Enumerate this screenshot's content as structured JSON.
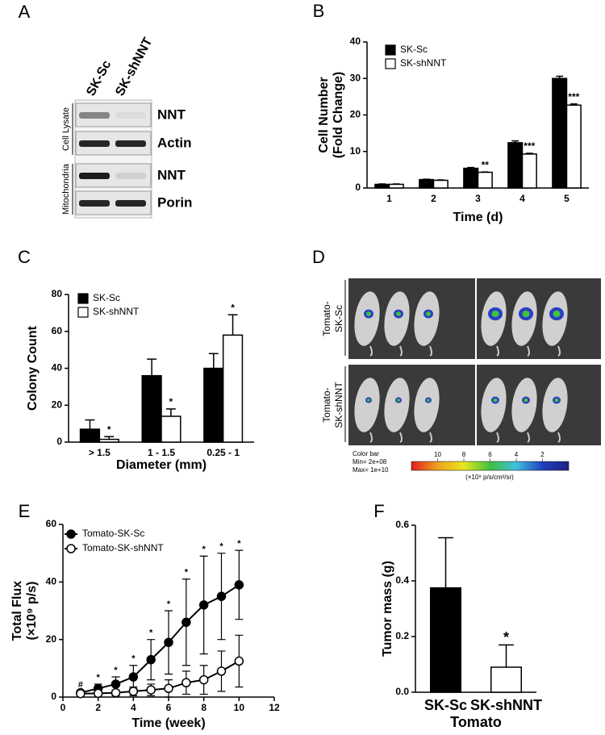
{
  "blot": {
    "panel": "A",
    "lanes": [
      "SK-Sc",
      "SK-shNNT"
    ],
    "groups": [
      "Cell Lysate",
      "Mitochondria"
    ],
    "rows": [
      "NNT",
      "Actin",
      "NNT",
      "Porin"
    ]
  },
  "imaging": {
    "panel": "D",
    "groups": [
      [
        "Tomato-",
        "SK-Sc"
      ],
      [
        "Tomato-",
        "SK-shNNT"
      ]
    ],
    "colorbar": {
      "title": "Color bar",
      "min": "Min= 2e+08",
      "max": "Max= 1e+10",
      "ticks": [
        10,
        8,
        6,
        4,
        2
      ],
      "unit": "(×10⁹ p/s/cm²/sr)"
    }
  },
  "chart_data": [
    {
      "panel": "B",
      "type": "bar",
      "ylabel": [
        "Cell Number",
        "(Fold Change)"
      ],
      "xlabel": "Time (d)",
      "categories": [
        "1",
        "2",
        "3",
        "4",
        "5"
      ],
      "ylim": [
        0,
        40
      ],
      "yticks": [
        0,
        10,
        20,
        30,
        40
      ],
      "legend": "upper left",
      "series": [
        {
          "name": "SK-Sc",
          "color": "#000000",
          "values": [
            1,
            2.3,
            5.4,
            12.4,
            30
          ],
          "errors": [
            0.1,
            0.1,
            0.2,
            0.5,
            0.6
          ]
        },
        {
          "name": "SK-shNNT",
          "color": "#ffffff",
          "values": [
            1,
            2.1,
            4.3,
            9.3,
            22.7
          ],
          "errors": [
            0.1,
            0.1,
            0.1,
            0.2,
            0.3
          ],
          "annotations": [
            null,
            null,
            "**",
            "***",
            "***"
          ]
        }
      ]
    },
    {
      "panel": "C",
      "type": "bar",
      "ylabel": [
        "Colony Count"
      ],
      "xlabel": "Diameter (mm)",
      "categories": [
        "> 1.5",
        "1 - 1.5",
        "0.25 - 1"
      ],
      "ylim": [
        0,
        80
      ],
      "yticks": [
        0,
        20,
        40,
        60,
        80
      ],
      "legend": "upper left",
      "series": [
        {
          "name": "SK-Sc",
          "color": "#000000",
          "values": [
            7,
            36,
            40
          ],
          "errors": [
            5,
            9,
            8
          ]
        },
        {
          "name": "SK-shNNT",
          "color": "#ffffff",
          "values": [
            1.5,
            14,
            58
          ],
          "errors": [
            1.5,
            4,
            11
          ],
          "annotations": [
            "*",
            "*",
            "*"
          ]
        }
      ]
    },
    {
      "panel": "E",
      "type": "line",
      "ylabel": [
        "Total Flux",
        "(×10⁹ p/s)"
      ],
      "xlabel": "Time (week)",
      "x": [
        1,
        2,
        3,
        4,
        5,
        6,
        7,
        8,
        9,
        10
      ],
      "xlim": [
        0,
        12
      ],
      "xticks": [
        0,
        2,
        4,
        6,
        8,
        10,
        12
      ],
      "ylim": [
        0,
        60
      ],
      "yticks": [
        0,
        20,
        40,
        60
      ],
      "legend": "upper left",
      "annotations": [
        "#",
        "*",
        "*",
        "*",
        "*",
        "*",
        "*",
        "*",
        "*",
        "*"
      ],
      "series": [
        {
          "name": "Tomato-SK-Sc",
          "color": "#000000",
          "values": [
            1.5,
            3,
            4.5,
            7,
            13,
            19,
            26,
            32,
            35,
            39
          ],
          "errors": [
            0.5,
            1.5,
            2.5,
            4,
            7,
            11,
            15,
            17,
            15,
            12
          ]
        },
        {
          "name": "Tomato-SK-shNNT",
          "color": "#ffffff",
          "values": [
            1.2,
            1.3,
            1.5,
            2,
            2.5,
            3,
            5,
            6,
            9,
            12.5
          ],
          "errors": [
            0.3,
            0.6,
            1,
            1.5,
            2,
            3,
            4,
            5,
            7,
            9
          ]
        }
      ]
    },
    {
      "panel": "F",
      "type": "bar",
      "ylabel": [
        "Tumor mass (g)"
      ],
      "xlabel": "Tomato",
      "categories": [
        "SK-Sc",
        "SK-shNNT"
      ],
      "ylim": [
        0,
        0.6
      ],
      "yticks": [
        {
          "value": 0,
          "label": "0.0"
        },
        0.2,
        0.4,
        0.6
      ],
      "series": [
        {
          "color": "#ffffff",
          "colors": [
            "#000000",
            "#ffffff"
          ],
          "values": [
            0.375,
            0.09
          ],
          "errors": [
            0.18,
            0.08
          ],
          "annotations": [
            null,
            "*"
          ]
        }
      ]
    }
  ]
}
